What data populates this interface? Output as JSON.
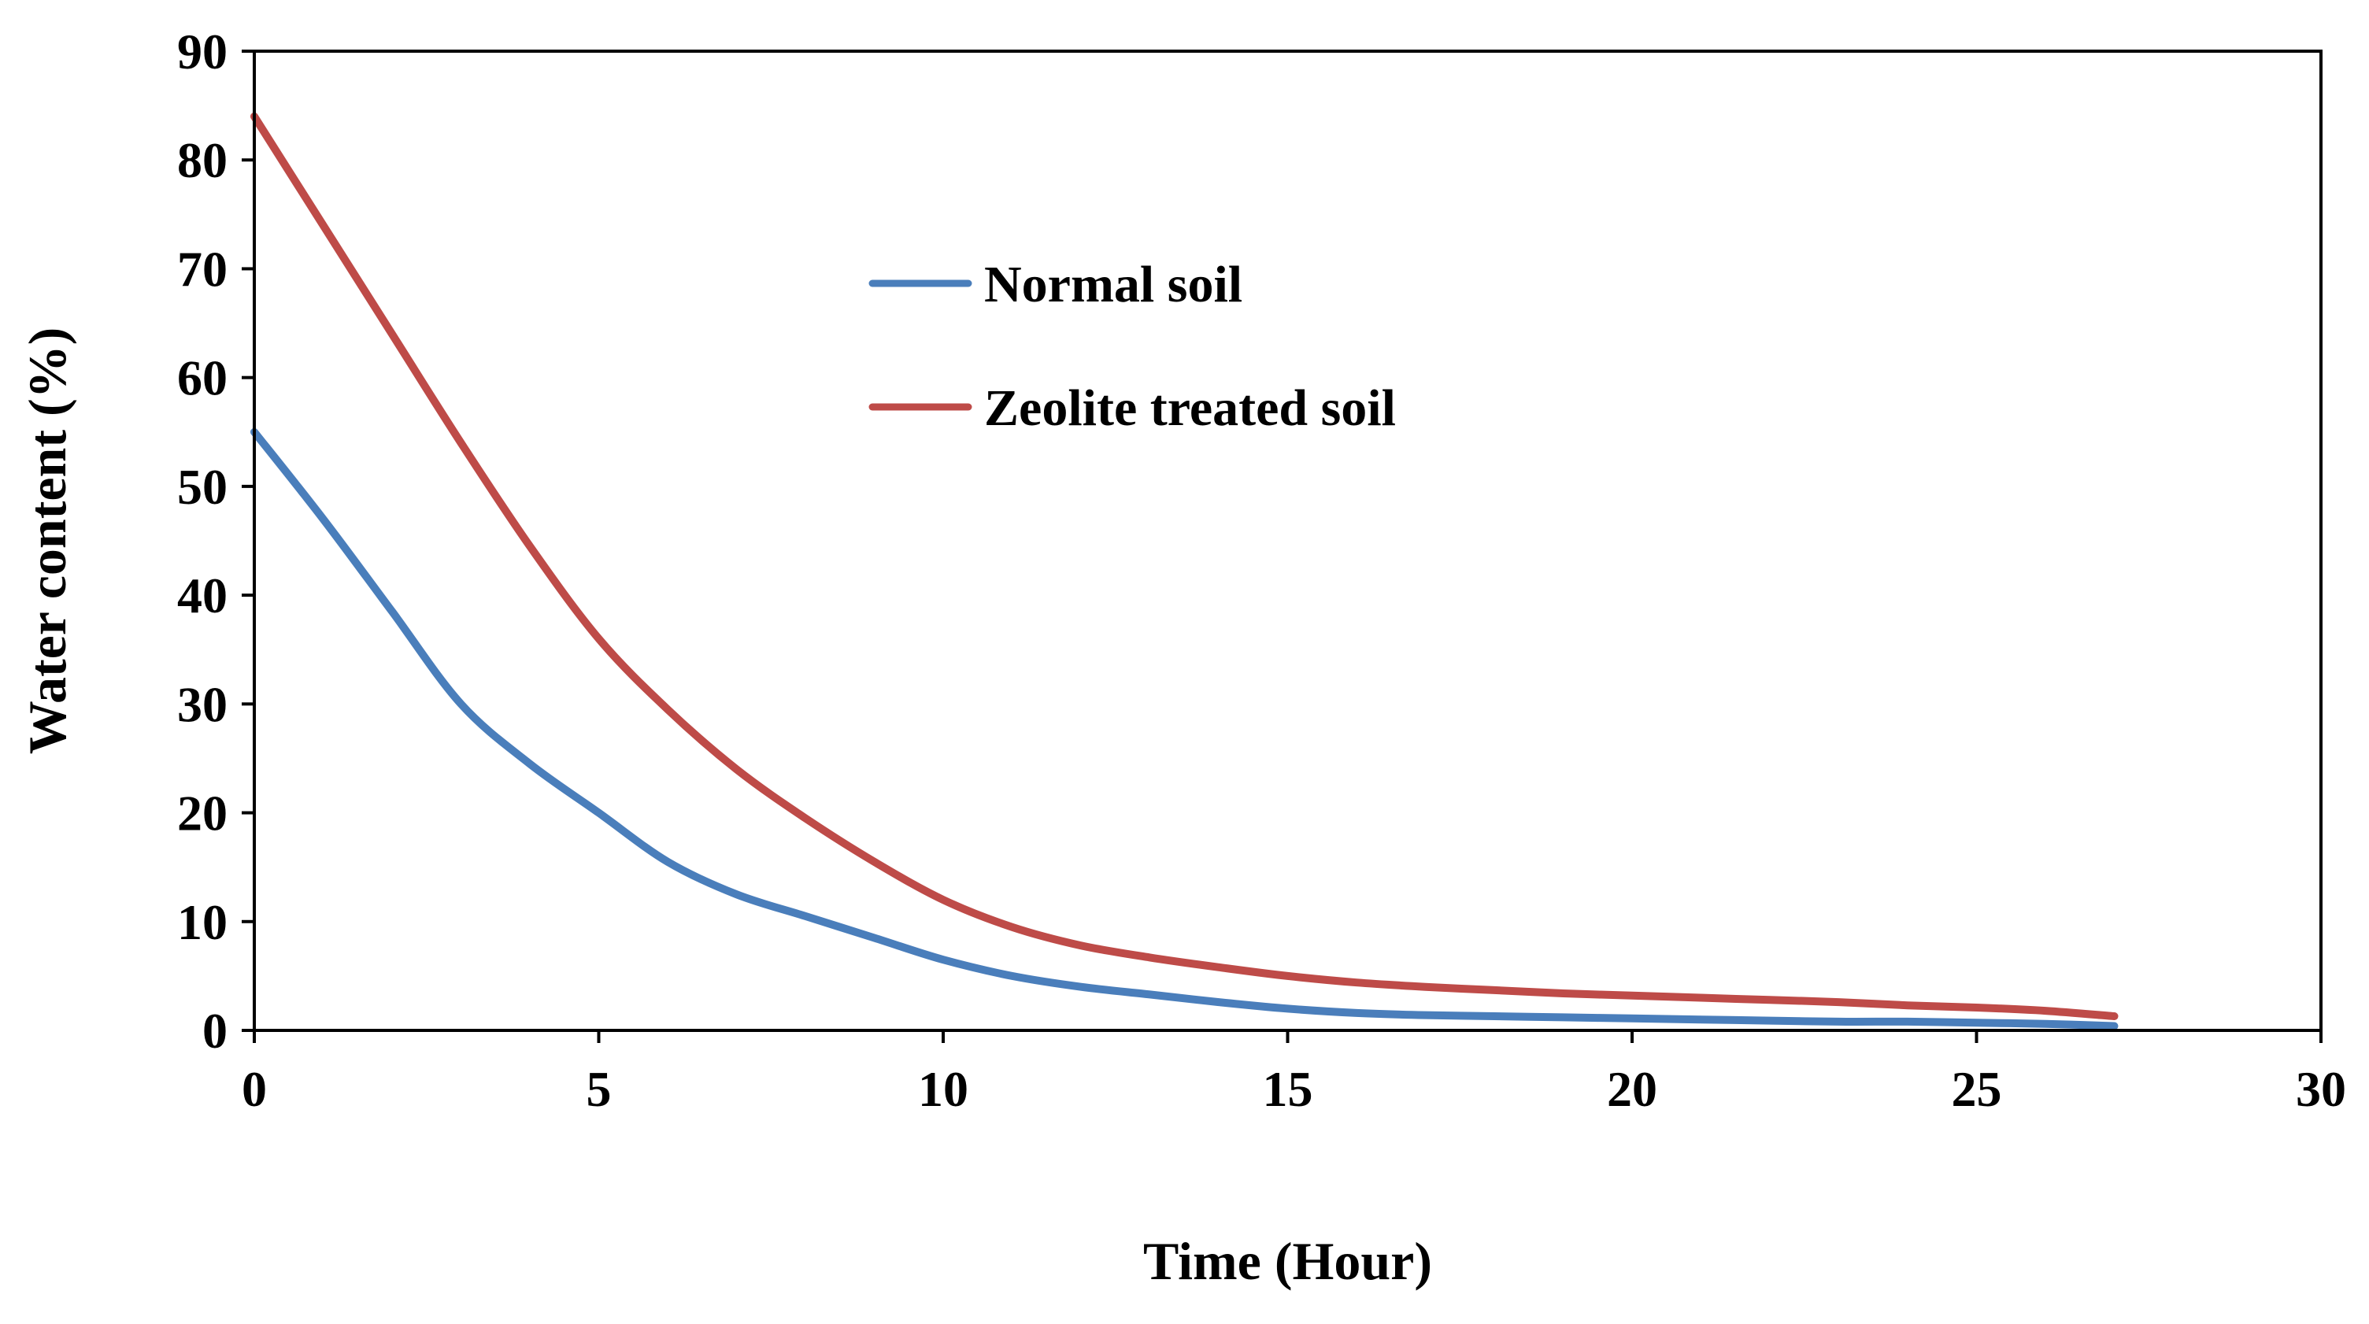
{
  "chart_data": {
    "type": "line",
    "title": "",
    "xlabel": "Time (Hour)",
    "ylabel": "Water content (%)",
    "xlim": [
      0,
      30
    ],
    "ylim": [
      0,
      90
    ],
    "xticks": [
      0,
      5,
      10,
      15,
      20,
      25,
      30
    ],
    "yticks": [
      0,
      10,
      20,
      30,
      40,
      50,
      60,
      70,
      80,
      90
    ],
    "grid": false,
    "legend_position": "upper-center",
    "series": [
      {
        "name": "Normal soil",
        "color": "#4a7ebb",
        "x": [
          0,
          1,
          2,
          3,
          4,
          5,
          6,
          7,
          8,
          9,
          10,
          11,
          12,
          13,
          14,
          15,
          16,
          17,
          18,
          19,
          20,
          21,
          22,
          23,
          24,
          25,
          26,
          27
        ],
        "y": [
          55,
          47,
          38.5,
          30,
          24.5,
          20,
          15.5,
          12.5,
          10.5,
          8.5,
          6.5,
          5,
          4,
          3.3,
          2.6,
          2,
          1.6,
          1.4,
          1.3,
          1.2,
          1.1,
          1.0,
          0.9,
          0.8,
          0.8,
          0.7,
          0.6,
          0.4
        ]
      },
      {
        "name": "Zeolite treated soil",
        "color": "#be4b48",
        "x": [
          0,
          1,
          2,
          3,
          4,
          5,
          6,
          7,
          8,
          9,
          10,
          11,
          12,
          13,
          14,
          15,
          16,
          17,
          18,
          19,
          20,
          21,
          22,
          23,
          24,
          25,
          26,
          27
        ],
        "y": [
          84,
          74,
          64,
          54,
          44.5,
          36,
          29.5,
          24,
          19.5,
          15.5,
          12,
          9.5,
          7.8,
          6.7,
          5.8,
          5.0,
          4.4,
          4.0,
          3.7,
          3.4,
          3.2,
          3.0,
          2.8,
          2.6,
          2.3,
          2.1,
          1.8,
          1.3
        ]
      }
    ]
  }
}
